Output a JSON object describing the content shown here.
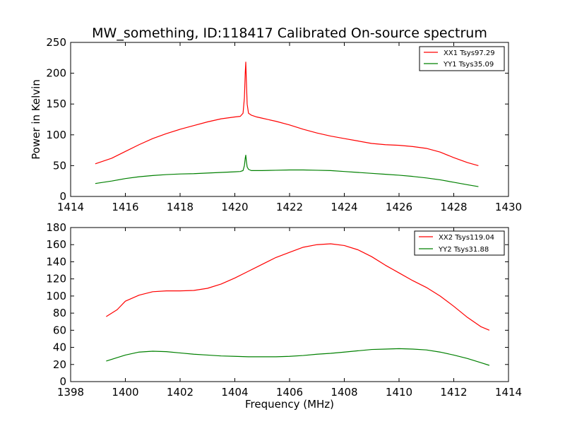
{
  "figure_title": "MW_something, ID:118417 Calibrated On-source spectrum",
  "chart_data": [
    {
      "type": "line",
      "title": "",
      "xlabel": "",
      "ylabel": "Power in Kelvin",
      "xlim": [
        1414,
        1430
      ],
      "ylim": [
        0,
        250
      ],
      "xticks": [
        1414,
        1416,
        1418,
        1420,
        1422,
        1424,
        1426,
        1428,
        1430
      ],
      "yticks": [
        0,
        50,
        100,
        150,
        200,
        250
      ],
      "legend_position": "top-right",
      "grid": false,
      "series": [
        {
          "name": "XX1 Tsys97.29",
          "color": "#ff0000",
          "x": [
            1414.9,
            1415.5,
            1416.0,
            1416.5,
            1417.0,
            1417.5,
            1418.0,
            1418.5,
            1419.0,
            1419.5,
            1420.0,
            1420.2,
            1420.3,
            1420.35,
            1420.38,
            1420.4,
            1420.42,
            1420.45,
            1420.5,
            1420.6,
            1420.8,
            1421.0,
            1421.5,
            1422.0,
            1422.5,
            1423.0,
            1423.5,
            1424.0,
            1424.5,
            1425.0,
            1425.5,
            1426.0,
            1426.5,
            1427.0,
            1427.5,
            1428.0,
            1428.5,
            1428.9
          ],
          "y": [
            53,
            62,
            73,
            84,
            94,
            102,
            109,
            115,
            121,
            126,
            129,
            130,
            135,
            160,
            200,
            218,
            190,
            150,
            135,
            132,
            129,
            127,
            122,
            116,
            109,
            103,
            98,
            94,
            90,
            86,
            84,
            83,
            81,
            78,
            72,
            63,
            55,
            50
          ]
        },
        {
          "name": "YY1 Tsys35.09",
          "color": "#008000",
          "x": [
            1414.9,
            1415.5,
            1416.0,
            1416.5,
            1417.0,
            1417.5,
            1418.0,
            1418.5,
            1419.0,
            1419.5,
            1420.0,
            1420.2,
            1420.3,
            1420.35,
            1420.38,
            1420.4,
            1420.42,
            1420.45,
            1420.5,
            1420.6,
            1421.0,
            1421.5,
            1422.0,
            1422.5,
            1423.0,
            1423.5,
            1424.0,
            1424.5,
            1425.0,
            1425.5,
            1426.0,
            1426.5,
            1427.0,
            1427.5,
            1428.0,
            1428.5,
            1428.9
          ],
          "y": [
            21,
            25,
            29,
            32,
            34,
            35.5,
            36.5,
            37,
            38,
            39,
            40,
            40.5,
            42,
            50,
            62,
            67,
            58,
            48,
            44,
            42,
            42,
            42.5,
            43,
            43,
            42.5,
            42,
            40.5,
            39,
            37.5,
            36,
            34.5,
            32.5,
            30,
            27,
            23,
            19,
            16
          ]
        }
      ]
    },
    {
      "type": "line",
      "title": "",
      "xlabel": "Frequency (MHz)",
      "ylabel": "",
      "xlim": [
        1398,
        1414
      ],
      "ylim": [
        0,
        180
      ],
      "xticks": [
        1398,
        1400,
        1402,
        1404,
        1406,
        1408,
        1410,
        1412,
        1414
      ],
      "yticks": [
        0,
        20,
        40,
        60,
        80,
        100,
        120,
        140,
        160,
        180
      ],
      "legend_position": "top-right",
      "grid": false,
      "series": [
        {
          "name": "XX2 Tsys119.04",
          "color": "#ff0000",
          "x": [
            1399.3,
            1399.7,
            1400.0,
            1400.5,
            1401.0,
            1401.5,
            1402.0,
            1402.5,
            1403.0,
            1403.5,
            1404.0,
            1404.5,
            1405.0,
            1405.5,
            1406.0,
            1406.5,
            1407.0,
            1407.5,
            1408.0,
            1408.5,
            1409.0,
            1409.5,
            1410.0,
            1410.5,
            1411.0,
            1411.5,
            1412.0,
            1412.5,
            1413.0,
            1413.3
          ],
          "y": [
            76,
            84,
            94,
            101,
            105,
            106,
            106,
            106.5,
            109,
            114,
            121,
            129,
            137,
            145,
            151,
            157,
            160,
            161,
            159,
            154,
            146,
            136,
            127,
            118,
            110,
            100,
            88,
            75,
            64,
            60
          ]
        },
        {
          "name": "YY2 Tsys31.88",
          "color": "#008000",
          "x": [
            1399.3,
            1399.7,
            1400.0,
            1400.5,
            1401.0,
            1401.5,
            1402.0,
            1402.5,
            1403.0,
            1403.5,
            1404.0,
            1404.5,
            1405.0,
            1405.5,
            1406.0,
            1406.5,
            1407.0,
            1407.5,
            1408.0,
            1408.5,
            1409.0,
            1409.5,
            1410.0,
            1410.5,
            1411.0,
            1411.5,
            1412.0,
            1412.5,
            1413.0,
            1413.3
          ],
          "y": [
            24,
            28,
            31,
            34.5,
            35.5,
            35,
            33.5,
            32,
            31,
            30,
            29.5,
            29,
            29,
            29,
            29.5,
            30.5,
            32,
            33,
            34.5,
            36,
            37.5,
            38,
            38.5,
            38,
            37,
            34.5,
            31,
            27,
            22,
            19
          ]
        }
      ]
    }
  ]
}
